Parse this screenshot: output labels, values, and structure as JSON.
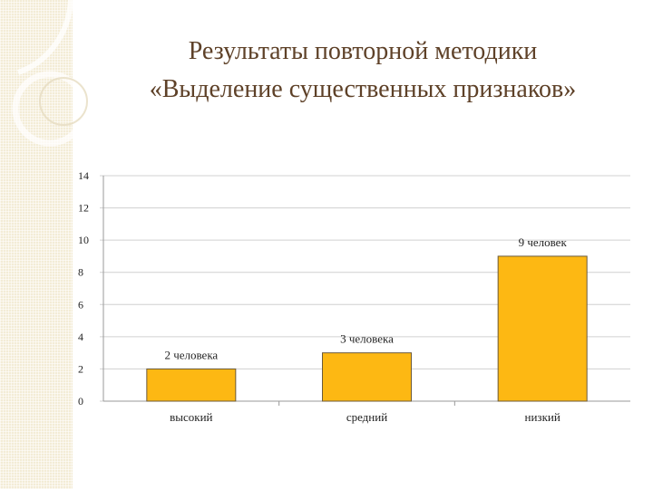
{
  "slide": {
    "title_line1": "Результаты повторной методики",
    "title_line2": "«Выделение существенных признаков»"
  },
  "colors": {
    "bar_fill": "#fdb813",
    "bar_stroke": "#6b5a3a",
    "title": "#5e4128",
    "grid": "#d0d0d0",
    "side_pattern": "#f3ecd6"
  },
  "chart_data": {
    "type": "bar",
    "categories": [
      "высокий",
      "средний",
      "низкий"
    ],
    "values": [
      2,
      3,
      9
    ],
    "data_labels": [
      "2 человека",
      "3 человека",
      "9 человек"
    ],
    "ylim": [
      0,
      14
    ],
    "yticks": [
      "0",
      "2",
      "4",
      "6",
      "8",
      "10",
      "12",
      "14"
    ],
    "grid": true,
    "legend": false
  }
}
